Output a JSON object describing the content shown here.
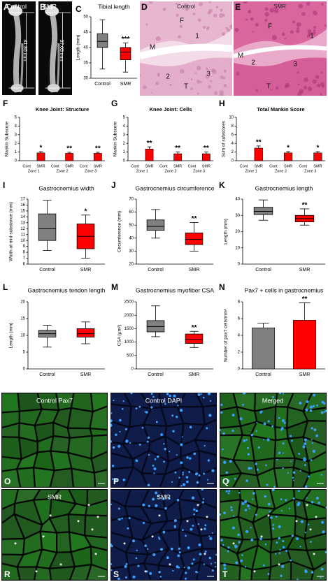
{
  "chart_data": [
    {
      "type": "box",
      "panel": "C",
      "title": "Tibial length",
      "ylabel": "Length (mm)",
      "categories": [
        "Control",
        "SMR"
      ],
      "colors": [
        "#808080",
        "#ff0000"
      ],
      "boxes": [
        {
          "min": 33,
          "q1": 40,
          "median": 42,
          "q3": 44.5,
          "max": 49
        },
        {
          "min": 32,
          "q1": 36,
          "median": 38.5,
          "q3": 40,
          "max": 41.5
        }
      ],
      "annotations": [
        null,
        "***"
      ],
      "ylim": [
        30,
        50
      ],
      "yticks": [
        30,
        35,
        40,
        45,
        50
      ]
    },
    {
      "type": "bar",
      "panel": "F",
      "title": "Knee Joint: Structure",
      "ylabel": "Mankin Subscore",
      "categories": [
        "Cont",
        "SMR",
        "Cont",
        "SMR",
        "Cont",
        "SMR"
      ],
      "groups": [
        "Zone 1",
        "Zone 2",
        "Zone 3"
      ],
      "values": [
        0,
        0.9,
        0,
        0.85,
        0,
        0.85
      ],
      "errors": [
        null,
        0.15,
        null,
        0.12,
        null,
        0.12
      ],
      "colors": [
        "#ff0000",
        "#ff0000",
        "#ff0000",
        "#ff0000",
        "#ff0000",
        "#ff0000"
      ],
      "annotations": [
        null,
        "*",
        null,
        "**",
        null,
        "**"
      ],
      "ylim": [
        0,
        5
      ],
      "yticks": [
        0,
        1,
        2,
        3,
        4,
        5
      ]
    },
    {
      "type": "bar",
      "panel": "G",
      "title": "Knee Joint: Cells",
      "ylabel": "Mankin Subscore",
      "categories": [
        "Cont",
        "SMR",
        "Cont",
        "SMR",
        "Cont",
        "SMR"
      ],
      "groups": [
        "Zone 1",
        "Zone 2",
        "Zone 3"
      ],
      "values": [
        0,
        1.35,
        0,
        0.8,
        0,
        0.8
      ],
      "errors": [
        null,
        0.25,
        null,
        0.2,
        null,
        0.2
      ],
      "colors": [
        "#ff0000",
        "#ff0000",
        "#ff0000",
        "#ff0000",
        "#ff0000",
        "#ff0000"
      ],
      "annotations": [
        null,
        "**",
        null,
        "**",
        null,
        "**"
      ],
      "ylim": [
        0,
        5
      ],
      "yticks": [
        0,
        1,
        2,
        3,
        4,
        5
      ]
    },
    {
      "type": "bar",
      "panel": "H",
      "title": "Total Mankin Score",
      "ylabel": "Sum of subscores",
      "categories": [
        "Cont",
        "SMR",
        "Cont",
        "SMR",
        "Cont",
        "SMR"
      ],
      "groups": [
        "Zone 1",
        "Zone 2",
        "Zone 3"
      ],
      "values": [
        0,
        2.9,
        0,
        1.8,
        0,
        1.8
      ],
      "errors": [
        null,
        0.5,
        null,
        0.3,
        null,
        0.3
      ],
      "colors": [
        "#ff0000",
        "#ff0000",
        "#ff0000",
        "#ff0000",
        "#ff0000",
        "#ff0000"
      ],
      "annotations": [
        null,
        "**",
        null,
        "*",
        null,
        "*"
      ],
      "ylim": [
        0,
        10
      ],
      "yticks": [
        0,
        2,
        4,
        6,
        8,
        10
      ]
    },
    {
      "type": "box",
      "panel": "I",
      "title": "Gastrocnemius width",
      "ylabel": "Width at mid-substance (mm)",
      "categories": [
        "Control",
        "SMR"
      ],
      "colors": [
        "#808080",
        "#ff0000"
      ],
      "boxes": [
        {
          "min": 8.3,
          "q1": 10,
          "median": 12,
          "q3": 14.5,
          "max": 16.8
        },
        {
          "min": 7,
          "q1": 8.6,
          "median": 10.7,
          "q3": 12.8,
          "max": 14.3
        }
      ],
      "annotations": [
        null,
        "*"
      ],
      "ylim": [
        6,
        17
      ],
      "yticks": [
        6,
        7,
        8,
        9,
        10,
        11,
        12,
        13,
        14,
        15,
        16,
        17
      ]
    },
    {
      "type": "box",
      "panel": "J",
      "title": "Gastrocnemius circumference",
      "ylabel": "Circumference (mm)",
      "categories": [
        "Control",
        "SMR"
      ],
      "colors": [
        "#808080",
        "#ff0000"
      ],
      "boxes": [
        {
          "min": 40,
          "q1": 46,
          "median": 49,
          "q3": 54,
          "max": 62
        },
        {
          "min": 30,
          "q1": 35,
          "median": 39,
          "q3": 44,
          "max": 52
        }
      ],
      "annotations": [
        null,
        "**"
      ],
      "ylim": [
        20,
        70
      ],
      "yticks": [
        20,
        30,
        40,
        50,
        60,
        70
      ]
    },
    {
      "type": "box",
      "panel": "K",
      "title": "Gastrocnemius length",
      "ylabel": "Length (mm)",
      "categories": [
        "Control",
        "SMR"
      ],
      "colors": [
        "#808080",
        "#ff0000"
      ],
      "boxes": [
        {
          "min": 27,
          "q1": 30.5,
          "median": 32.5,
          "q3": 35,
          "max": 39.5
        },
        {
          "min": 24,
          "q1": 26,
          "median": 28,
          "q3": 30,
          "max": 34
        }
      ],
      "annotations": [
        null,
        "**"
      ],
      "ylim": [
        0,
        40
      ],
      "yticks": [
        0,
        10,
        20,
        30,
        40
      ]
    },
    {
      "type": "box",
      "panel": "L",
      "title": "Gastrocnemius tendon length",
      "ylabel": "Length (mm)",
      "categories": [
        "Control",
        "SMR"
      ],
      "colors": [
        "#808080",
        "#ff0000"
      ],
      "boxes": [
        {
          "min": 6.5,
          "q1": 9.5,
          "median": 10.5,
          "q3": 11.5,
          "max": 13
        },
        {
          "min": 7.5,
          "q1": 9.5,
          "median": 10.5,
          "q3": 12,
          "max": 14
        }
      ],
      "annotations": [
        null,
        null
      ],
      "ylim": [
        0,
        20
      ],
      "yticks": [
        0,
        5,
        10,
        15,
        20
      ]
    },
    {
      "type": "box",
      "panel": "M",
      "title": "Gastrocnemius myofiber CSA",
      "ylabel": "CSA (µm²)",
      "categories": [
        "Control",
        "SMR"
      ],
      "colors": [
        "#808080",
        "#ff0000"
      ],
      "boxes": [
        {
          "min": 1200,
          "q1": 1380,
          "median": 1580,
          "q3": 1800,
          "max": 2350
        },
        {
          "min": 800,
          "q1": 950,
          "median": 1100,
          "q3": 1300,
          "max": 1400
        }
      ],
      "annotations": [
        null,
        "**"
      ],
      "ylim": [
        0,
        2500
      ],
      "yticks": [
        0,
        500,
        1000,
        1500,
        2000,
        2500
      ]
    },
    {
      "type": "bar",
      "panel": "N",
      "title": "Pax7 + cells in gastrocnemius",
      "ylabel": "Number of pax7 cells/mm²",
      "categories": [
        "Control",
        "SMR"
      ],
      "values": [
        4.9,
        5.8
      ],
      "errors": [
        0.55,
        2.1
      ],
      "colors": [
        "#808080",
        "#ff0000"
      ],
      "annotations": [
        null,
        "**"
      ],
      "ylim": [
        0,
        8
      ],
      "yticks": [
        0,
        2,
        4,
        6,
        8
      ]
    }
  ],
  "images": [
    {
      "panel": "A",
      "labels": [
        "Control",
        "41.86 mm"
      ]
    },
    {
      "panel": "B",
      "labels": [
        "SMR",
        "37.05 mm"
      ]
    },
    {
      "panel": "D",
      "labels": [
        "Control",
        "F",
        "M",
        "1",
        "2",
        "3",
        "T"
      ]
    },
    {
      "panel": "E",
      "labels": [
        "SMR",
        "F",
        "1",
        "M",
        "2",
        "3",
        "T"
      ]
    },
    {
      "panel": "O",
      "labels": [
        "Control Pax7"
      ]
    },
    {
      "panel": "P",
      "labels": [
        "Control DAPI"
      ]
    },
    {
      "panel": "Q",
      "labels": [
        "Merged"
      ]
    },
    {
      "panel": "R",
      "labels": [
        "SMR"
      ],
      "marker": "*"
    },
    {
      "panel": "S",
      "labels": [
        "SMR"
      ],
      "marker": "*"
    },
    {
      "panel": "T",
      "labels": [],
      "marker": "*"
    }
  ]
}
